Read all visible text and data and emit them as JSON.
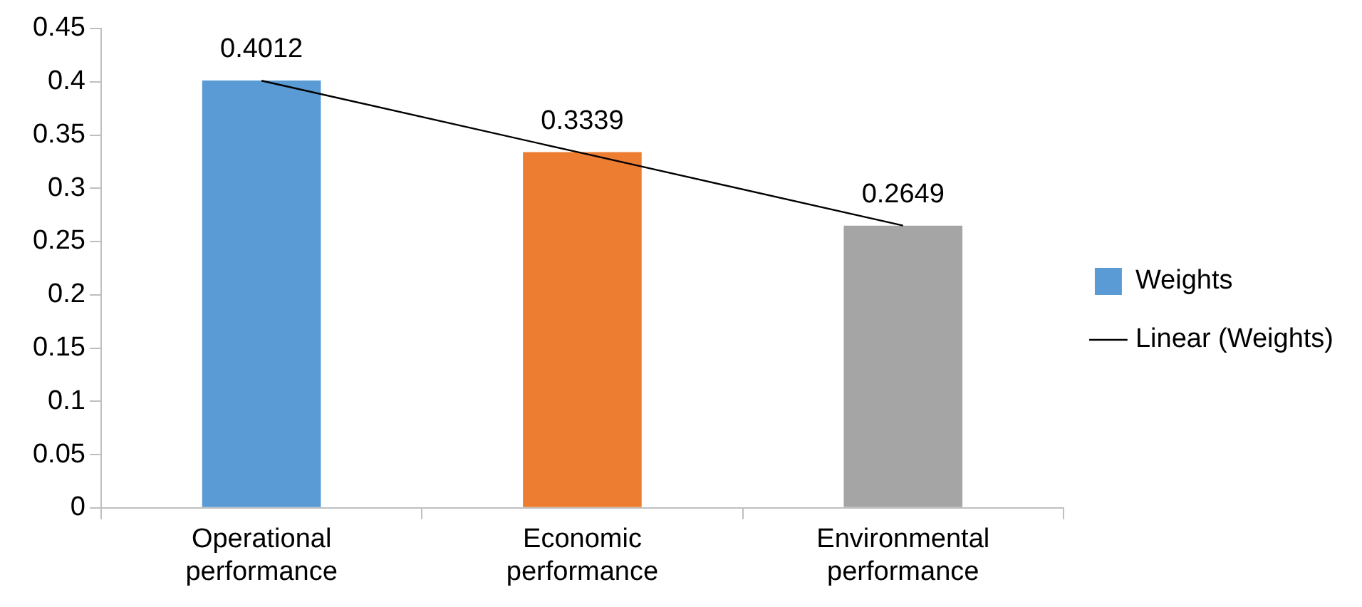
{
  "chart_data": {
    "type": "bar",
    "categories": [
      "Operational performance",
      "Economic performance",
      "Environmental performance"
    ],
    "series": [
      {
        "name": "Weights",
        "colors": [
          "#5b9bd5",
          "#ed7d31",
          "#a5a5a5"
        ],
        "values": [
          0.4012,
          0.3339,
          0.2649
        ],
        "value_labels": [
          "0.4012",
          "0.3339",
          "0.2649"
        ]
      },
      {
        "name": "Linear (Weights)",
        "type": "line",
        "color": "#000000",
        "values": [
          0.401,
          0.333,
          0.265
        ],
        "marker": "none"
      }
    ],
    "ylim": [
      0,
      0.45
    ],
    "yticks": [
      0,
      0.05,
      0.1,
      0.15,
      0.2,
      0.25,
      0.3,
      0.35,
      0.4,
      0.45
    ],
    "grid": false,
    "legend": "right"
  }
}
